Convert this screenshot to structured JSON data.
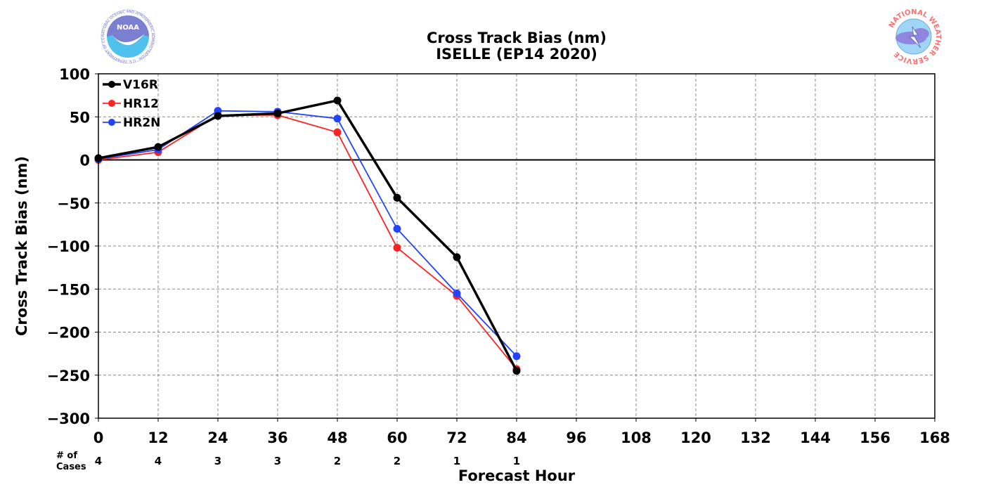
{
  "logos": {
    "noaa": {
      "text": "NOAA",
      "ring_text": "NATIONAL OCEANIC AND ATMOSPHERIC ADMINISTRATION · U.S. DEPARTMENT OF COMMERCE"
    },
    "nws": {
      "text": "NATIONAL WEATHER SERVICE"
    }
  },
  "cases_label": "# of\nCases",
  "chart_data": {
    "type": "line",
    "title": "Cross Track Bias (nm)",
    "subtitle": "ISELLE (EP14 2020)",
    "xlabel": "Forecast Hour",
    "ylabel": "Cross Track Bias (nm)",
    "xlim": [
      0,
      168
    ],
    "ylim": [
      -300,
      100
    ],
    "xticks": [
      0,
      12,
      24,
      36,
      48,
      60,
      72,
      84,
      96,
      108,
      120,
      132,
      144,
      156,
      168
    ],
    "yticks": [
      100,
      50,
      0,
      -50,
      -100,
      -150,
      -200,
      -250,
      -300
    ],
    "ytick_labels": [
      "100",
      "50",
      "0",
      "−50",
      "−100",
      "−150",
      "−200",
      "−250",
      "−300"
    ],
    "grid": true,
    "zero_line": true,
    "legend_position": "top-left",
    "cases": {
      "x": [
        0,
        12,
        24,
        36,
        48,
        60,
        72,
        84
      ],
      "counts": [
        "4",
        "4",
        "3",
        "3",
        "2",
        "2",
        "1",
        "1"
      ]
    },
    "series": [
      {
        "name": "V16R",
        "color": "#000000",
        "width": 3.5,
        "x": [
          0,
          12,
          24,
          36,
          48,
          60,
          72,
          84
        ],
        "values": [
          2,
          15,
          51,
          54,
          69,
          -44,
          -113,
          -245
        ]
      },
      {
        "name": "HR12",
        "color": "#ff2222",
        "width": 1.8,
        "x": [
          0,
          12,
          24,
          36,
          48,
          60,
          72,
          84
        ],
        "values": [
          0,
          9,
          52,
          52,
          32,
          -102,
          -158,
          -243
        ]
      },
      {
        "name": "HR2N",
        "color": "#2244ff",
        "width": 1.8,
        "x": [
          0,
          12,
          24,
          36,
          48,
          60,
          72,
          84
        ],
        "values": [
          1,
          12,
          57,
          56,
          48,
          -80,
          -155,
          -228
        ]
      }
    ]
  }
}
